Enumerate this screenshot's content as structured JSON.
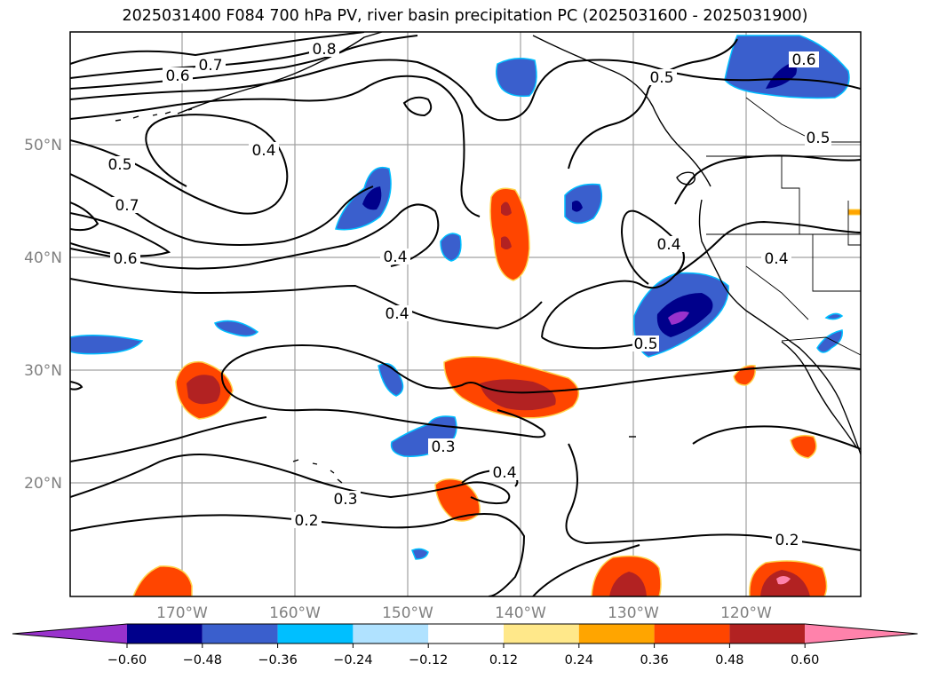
{
  "title": "2025031400 F084 700 hPa PV, river basin precipitation PC (2025031600 - 2025031900)",
  "map": {
    "lat_ticks": [
      "50°N",
      "40°N",
      "30°N",
      "20°N"
    ],
    "lon_ticks": [
      "170°W",
      "160°W",
      "150°W",
      "140°W",
      "130°W",
      "120°W"
    ],
    "contour_labels": [
      "0.8",
      "0.7",
      "0.6",
      "0.4",
      "0.5",
      "0.7",
      "0.6",
      "0.4",
      "0.4",
      "0.5",
      "0.6",
      "0.5",
      "0.4",
      "0.4",
      "0.5",
      "0.3",
      "0.4",
      "0.3",
      "0.2",
      "0.2"
    ],
    "contour_color": "#000000",
    "gridline_color": "#a0a0a0"
  },
  "colorbar": {
    "tick_labels": [
      "−0.60",
      "−0.48",
      "−0.36",
      "−0.24",
      "−0.12",
      "0.12",
      "0.24",
      "0.36",
      "0.48",
      "0.60"
    ],
    "colors": [
      "#9932cc",
      "#00008b",
      "#3a5fcd",
      "#00bfff",
      "#b0e2ff",
      "#ffffff",
      "#ffe88a",
      "#ffa500",
      "#ff4500",
      "#b22222",
      "#ff82ab"
    ]
  }
}
